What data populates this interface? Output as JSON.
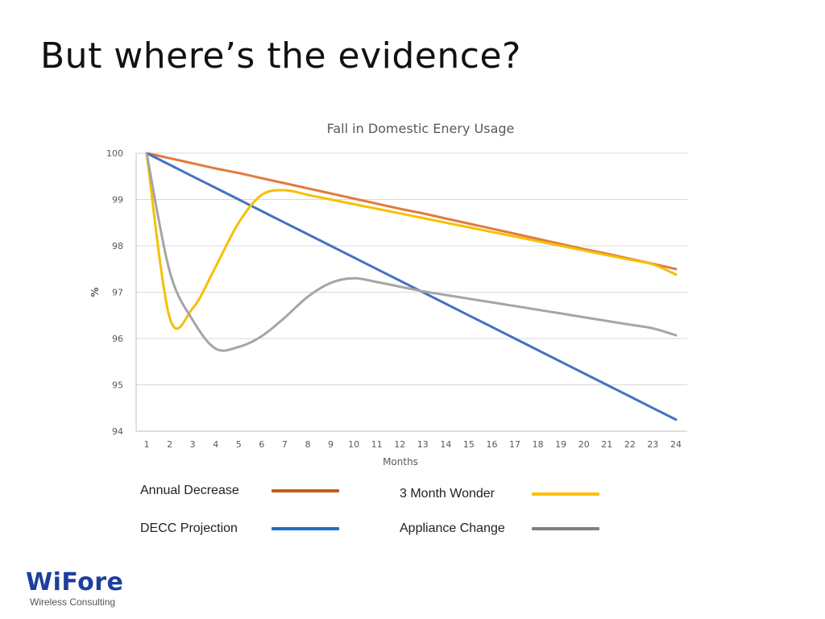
{
  "slide": {
    "title": "But where’s the evidence?"
  },
  "chart_data": {
    "type": "line",
    "title": "Fall in Domestic Enery Usage",
    "xlabel": "Months",
    "ylabel": "%",
    "x": [
      1,
      2,
      3,
      4,
      5,
      6,
      7,
      8,
      9,
      10,
      11,
      12,
      13,
      14,
      15,
      16,
      17,
      18,
      19,
      20,
      21,
      22,
      23,
      24
    ],
    "ylim": [
      94,
      100
    ],
    "yticks": [
      94,
      95,
      96,
      97,
      98,
      99,
      100
    ],
    "grid": true,
    "series": [
      {
        "name": "Annual Decrease",
        "color": "#e07b3c",
        "values": [
          100,
          99.89,
          99.78,
          99.67,
          99.57,
          99.46,
          99.35,
          99.24,
          99.13,
          99.02,
          98.91,
          98.8,
          98.7,
          98.59,
          98.48,
          98.37,
          98.26,
          98.15,
          98.04,
          97.93,
          97.83,
          97.72,
          97.61,
          97.5
        ]
      },
      {
        "name": "DECC Projection",
        "color": "#4472c4",
        "values": [
          100,
          99.75,
          99.5,
          99.25,
          99.0,
          98.75,
          98.5,
          98.25,
          98.0,
          97.75,
          97.5,
          97.25,
          97.0,
          96.75,
          96.5,
          96.25,
          96.0,
          95.75,
          95.5,
          95.25,
          95.0,
          94.75,
          94.5,
          94.25
        ]
      },
      {
        "name": "3 Month Wonder",
        "color": "#f5c000",
        "values": [
          100,
          96.45,
          96.65,
          97.55,
          98.5,
          99.1,
          99.2,
          99.1,
          99.0,
          98.9,
          98.8,
          98.7,
          98.6,
          98.5,
          98.4,
          98.3,
          98.2,
          98.1,
          98.0,
          97.9,
          97.8,
          97.7,
          97.6,
          97.38
        ]
      },
      {
        "name": "Appliance Change",
        "color": "#a5a5a5",
        "values": [
          100,
          97.45,
          96.4,
          95.78,
          95.82,
          96.05,
          96.45,
          96.9,
          97.2,
          97.3,
          97.22,
          97.12,
          97.02,
          96.94,
          96.86,
          96.78,
          96.7,
          96.62,
          96.54,
          96.46,
          96.38,
          96.3,
          96.22,
          96.07
        ]
      }
    ]
  },
  "legend": {
    "annual": {
      "label": "Annual Decrease",
      "color": "#c55a1c"
    },
    "decc": {
      "label": "DECC Projection",
      "color": "#1f6fc0"
    },
    "wonder": {
      "label": "3 Month Wonder",
      "color": "#ffc000"
    },
    "appliance": {
      "label": "Appliance Change",
      "color": "#808080"
    }
  },
  "logo": {
    "name": "WiFore",
    "tagline": "Wireless Consulting"
  }
}
